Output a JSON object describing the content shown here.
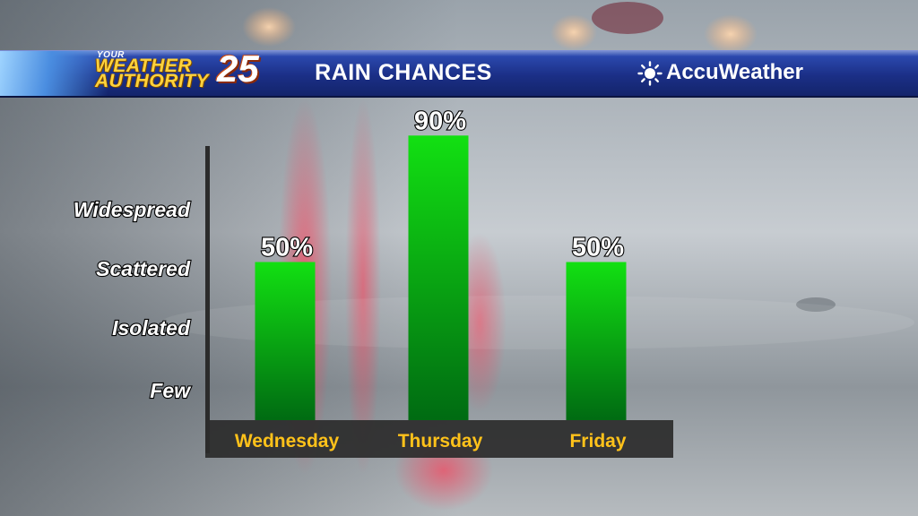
{
  "header": {
    "logo_top": "YOUR",
    "logo_line1": "WEATHER",
    "logo_line2": "AUTHORITY",
    "logo_number": "25",
    "title": "RAIN CHANCES",
    "partner": "AccuWeather"
  },
  "colors": {
    "header_blue": "#1b2f86",
    "bar_green_top": "#12e012",
    "bar_green_bottom": "#006b12",
    "category_yellow": "#ffc21a",
    "axis_dark": "#2b2b2b"
  },
  "icons": [
    "sun-icon"
  ],
  "chart_data": {
    "type": "bar",
    "title": "RAIN CHANCES",
    "categories": [
      "Wednesday",
      "Thursday",
      "Friday"
    ],
    "values": [
      50,
      90,
      50
    ],
    "value_labels": [
      "50%",
      "90%",
      "50%"
    ],
    "unit": "%",
    "ylim": [
      0,
      100
    ],
    "y_levels": [
      "Few",
      "Isolated",
      "Scattered",
      "Widespread"
    ],
    "grid": false,
    "legend": "none"
  }
}
